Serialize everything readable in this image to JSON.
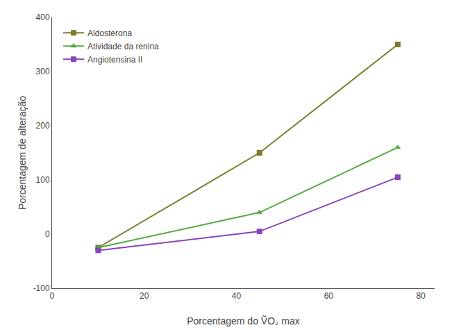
{
  "chart_data": {
    "type": "line",
    "x": [
      10,
      45,
      75
    ],
    "series": [
      {
        "name": "Aldosterona",
        "color": "#7a7a2a",
        "marker": "square",
        "values": [
          -25,
          150,
          350
        ]
      },
      {
        "name": "Atividade da renina",
        "color": "#55aa44",
        "marker": "triangle-up",
        "values": [
          -25,
          40,
          160
        ]
      },
      {
        "name": "Angiotensina II",
        "color": "#8844bb",
        "marker": "square",
        "values": [
          -30,
          5,
          105
        ]
      }
    ],
    "x_label": "Porcentagem do ṼO₂ max",
    "y_label": "Porcentagem de alteração",
    "xlim": [
      0,
      83
    ],
    "ylim": [
      -100,
      400
    ],
    "xticks": [
      0,
      20,
      40,
      60,
      80
    ],
    "yticks": [
      -100,
      0,
      100,
      200,
      300,
      400
    ],
    "grid": false,
    "legend": "upper left"
  }
}
